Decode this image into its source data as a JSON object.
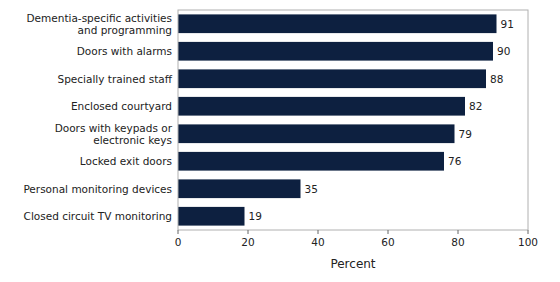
{
  "chart_data": {
    "type": "bar",
    "orientation": "horizontal",
    "categories": [
      "Closed circuit TV monitoring",
      "Personal monitoring devices",
      "Locked exit doors",
      "Doors with keypads or\nelectronic keys",
      "Enclosed courtyard",
      "Specially trained staff",
      "Doors with alarms",
      "Dementia-specific activities\nand programming"
    ],
    "values": [
      19,
      35,
      76,
      79,
      82,
      88,
      90,
      91
    ],
    "color": "#0d2040",
    "xlabel": "Percent",
    "xlim": [
      0,
      100
    ],
    "xticks": [
      0,
      20,
      40,
      60,
      80,
      100
    ],
    "data_labels": true,
    "grid": false
  }
}
